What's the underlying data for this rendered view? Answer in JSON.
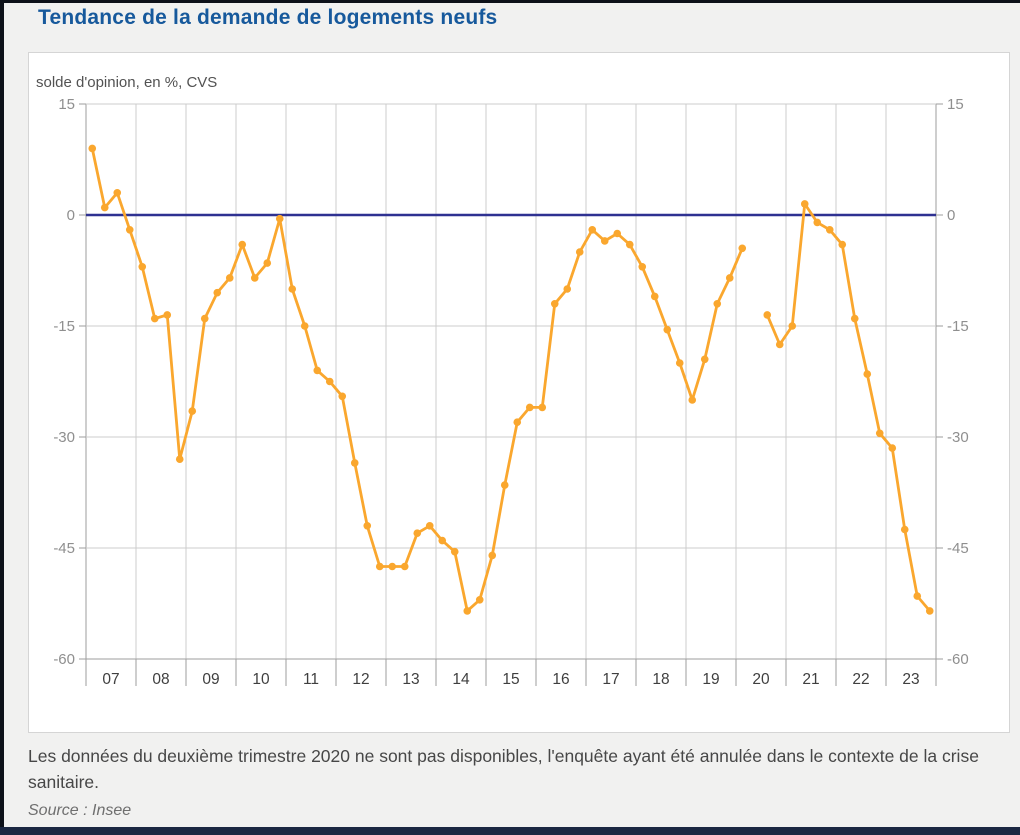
{
  "page": {
    "title": "Tendance de la demande de logements neufs",
    "footnote": "Les données du deuxième trimestre 2020 ne sont pas disponibles, l'enquête ayant été annulée dans le contexte de la crise sanitaire.",
    "source": "Source : Insee"
  },
  "chart": {
    "unit_label": "solde d'opinion, en %, CVS"
  },
  "colors": {
    "title": "#17599C",
    "page_background": "#F1F1F0",
    "panel_background": "#FFFFFF",
    "top_left_edge": "#0D1119",
    "bottom_bar": "#1B2742"
  },
  "chart_data": {
    "type": "line",
    "title": "Tendance de la demande de logements neufs",
    "subtitle": "solde d'opinion, en %, CVS",
    "xlabel": "",
    "ylabel": "solde d'opinion, en %, CVS",
    "frequency": "quarterly",
    "x_start": "2007Q1",
    "x_end": "2023Q4",
    "missing_quarter": "2020Q2",
    "ylim": [
      -60,
      15
    ],
    "y_ticks": [
      15,
      0,
      -15,
      -30,
      -45,
      -60
    ],
    "year_labels": [
      "07",
      "08",
      "09",
      "10",
      "11",
      "12",
      "13",
      "14",
      "15",
      "16",
      "17",
      "18",
      "19",
      "20",
      "21",
      "22",
      "23"
    ],
    "grid": true,
    "grid_color": "#CCCCCC",
    "frame_color": "#9E9E9E",
    "zero_line_color": "#2E3191",
    "tick_label_color": "#8F8F8F",
    "x_label_color": "#3F3F3F",
    "series": [
      {
        "name": "solde d'opinion",
        "color": "#FAA72E",
        "values": [
          9,
          1,
          3,
          -2,
          -7,
          -14,
          -13.5,
          -33,
          -26.5,
          -14,
          -10.5,
          -8.5,
          -4,
          -8.5,
          -6.5,
          -0.5,
          -10,
          -15,
          -21,
          -22.5,
          -24.5,
          -33.5,
          -42,
          -47.5,
          -47.5,
          -47.5,
          -43,
          -42,
          -44,
          -45.5,
          -53.5,
          -52,
          -46,
          -36.5,
          -28,
          -26,
          -26,
          -12,
          -10,
          -5,
          -2,
          -3.5,
          -2.5,
          -4,
          -7,
          -11,
          -15.5,
          -20,
          -25,
          -19.5,
          -12,
          -8.5,
          -4.5,
          null,
          -13.5,
          -17.5,
          -15,
          1.5,
          -1,
          -2,
          -4,
          -14,
          -21.5,
          -29.5,
          -31.5,
          -42.5,
          -51.5,
          -53.5
        ]
      }
    ]
  }
}
